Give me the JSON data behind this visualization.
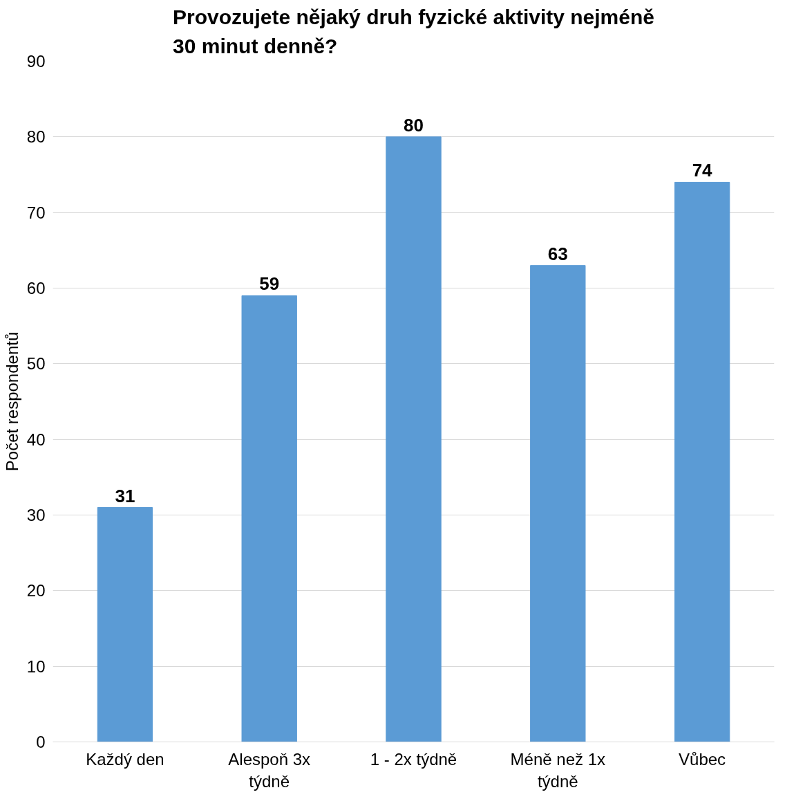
{
  "chart_data": {
    "type": "bar",
    "title": "Provozujete nějaký druh fyzické aktivity nejméně 30 minut denně?",
    "ylabel": "Počet respondentů",
    "categories": [
      "Každý den",
      "Alespoň 3x týdně",
      "1 - 2x týdně",
      "Méně než 1x týdně",
      "Vůbec"
    ],
    "values": [
      31,
      59,
      80,
      63,
      74
    ],
    "color": "#5b9bd5",
    "ylim": [
      0,
      90
    ],
    "yticks": [
      0,
      10,
      20,
      30,
      40,
      50,
      60,
      70,
      80,
      90
    ],
    "grid": "y",
    "data_labels": true
  }
}
